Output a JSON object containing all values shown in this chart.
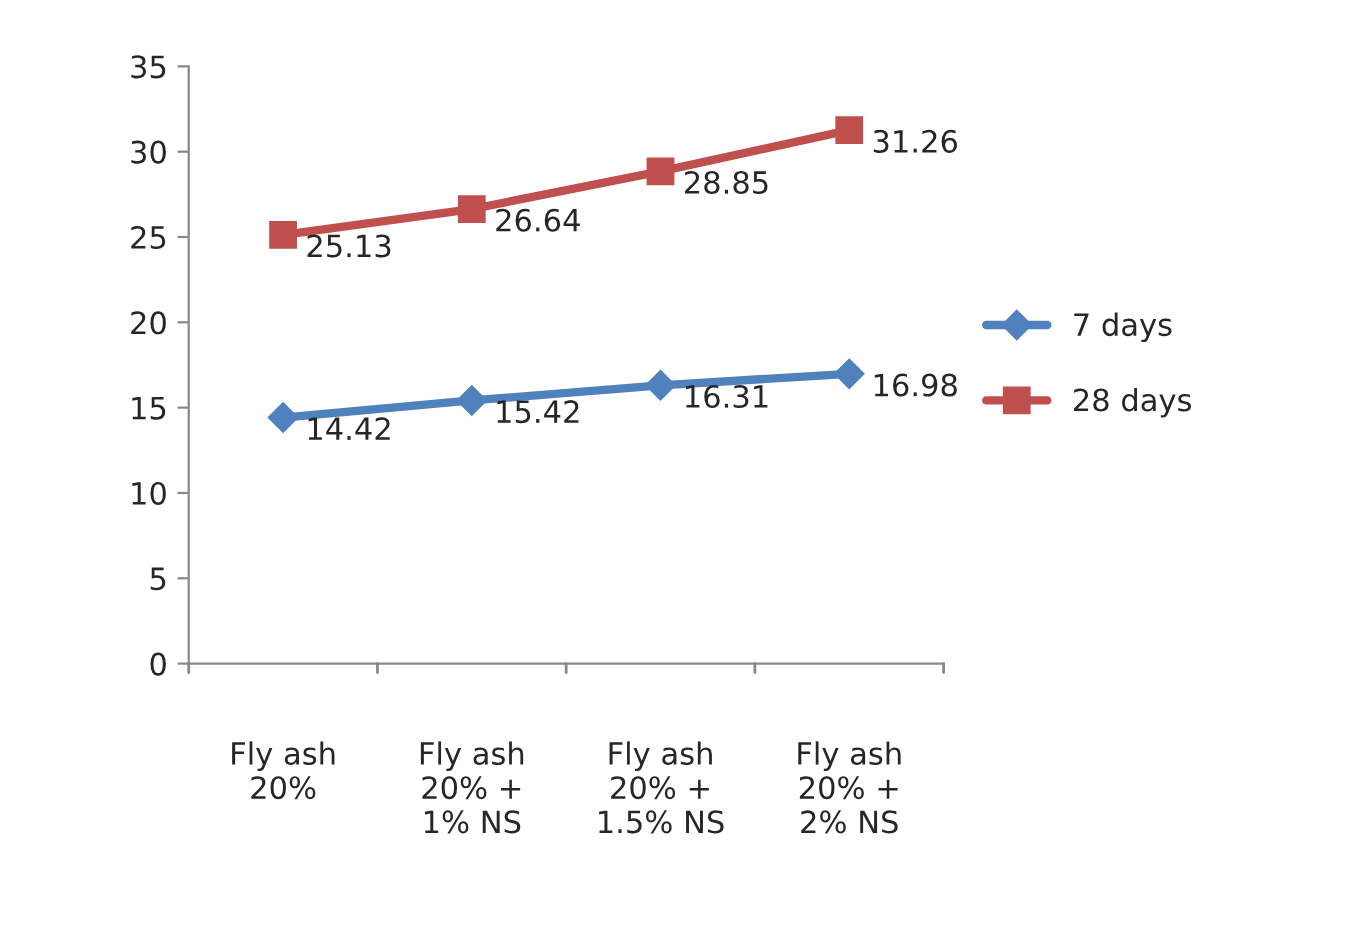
{
  "chart_data": {
    "type": "line",
    "categories": [
      "Fly ash\n20%",
      "Fly ash\n20% +\n1% NS",
      "Fly ash\n20% +\n1.5% NS",
      "Fly ash\n20% +\n2% NS"
    ],
    "series": [
      {
        "name": "7 days",
        "color": "#4f81bd",
        "marker": "diamond",
        "values": [
          14.42,
          15.42,
          16.31,
          16.98
        ]
      },
      {
        "name": "28 days",
        "color": "#c0504d",
        "marker": "square",
        "values": [
          25.13,
          26.64,
          28.85,
          31.26
        ]
      }
    ],
    "ylim": [
      0,
      35
    ],
    "yticks": [
      0,
      5,
      10,
      15,
      20,
      25,
      30,
      35
    ],
    "grid": false,
    "legend": "right",
    "data_labels": true,
    "line_style": "solid"
  }
}
